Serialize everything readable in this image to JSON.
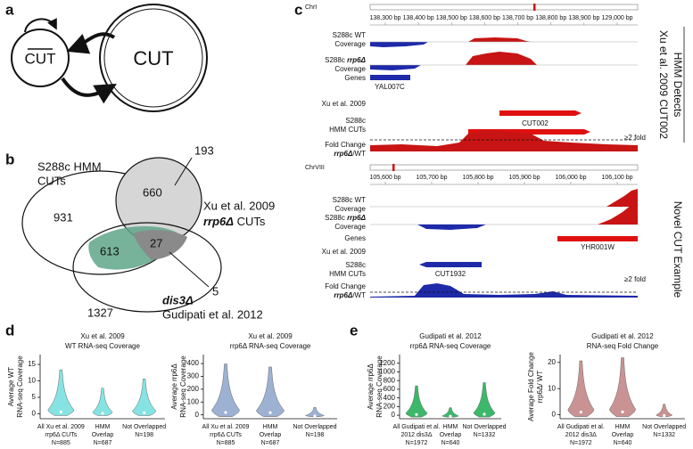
{
  "a": {
    "label": "a",
    "small": "CUT",
    "large": "CUT"
  },
  "b": {
    "label": "b",
    "hmm": [
      "S288c HMM",
      "CUTs"
    ],
    "xu": [
      "Xu et al. 2009",
      "rrp6Δ",
      "CUTs"
    ],
    "dis3": [
      "dis3Δ",
      "Gudipati et al. 2012"
    ],
    "counts": {
      "hmm_only": 931,
      "hmm_xu": 660,
      "xu_only": 193,
      "hmm_dis3": 613,
      "all": 27,
      "xu_dis3": 5,
      "dis3_only": 1327
    }
  },
  "c": {
    "label": "c",
    "browsers": [
      {
        "chrom": "ChrI",
        "scale": [
          "138,300 bp",
          "138,400 bp",
          "138,500 bp",
          "138,600 bp",
          "138,700 bp",
          "138,800 bp",
          "138,900 bp",
          "129,000 bp"
        ],
        "wt": [
          "S288c WT",
          "Coverage"
        ],
        "mut": [
          "S288c",
          "rrp6Δ",
          "Coverage"
        ],
        "genes": "Genes",
        "gene": "YAL007C",
        "xu": "Xu et al. 2009",
        "xu_cut": "CUT002",
        "hmm": [
          "S288c",
          "HMM CUTs"
        ],
        "fold": [
          "Fold Change",
          "rrp6Δ",
          "/WT"
        ],
        "threshold": "≥2 fold",
        "side": [
          "HMM Detects",
          "Xu et al. 2009 CUT002"
        ]
      },
      {
        "chrom": "ChrVIII",
        "scale": [
          "105,600 bp",
          "105,700 bp",
          "105,800 bp",
          "105,900 bp",
          "106,000 bp",
          "106,100 bp"
        ],
        "wt": [
          "S288c WT",
          "Coverage"
        ],
        "mut": [
          "S288c",
          "rrp6Δ",
          "Coverage"
        ],
        "genes": "Genes",
        "gene": "YHR001W",
        "xu": "Xu et al. 2009",
        "hmm_cut": "CUT1932",
        "hmm": [
          "S288c",
          "HMM CUTs"
        ],
        "fold": [
          "Fold Change",
          "rrp6Δ",
          "/WT"
        ],
        "threshold": "≥2 fold",
        "side": [
          "Novel CUT Example"
        ]
      }
    ]
  },
  "d": {
    "label": "d",
    "plots": [
      {
        "title": [
          "Xu et al. 2009",
          "WT RNA-seq Coverage"
        ],
        "ylabel": [
          "Average WT",
          "RNA-seq Coverage"
        ],
        "ylim": [
          -1.5,
          18
        ],
        "yticks": [
          0,
          5,
          10,
          15
        ],
        "color": "#86e3e3",
        "categories": [
          [
            "All Xu et al. 2009",
            "rrp6Δ CUTs",
            "N=885"
          ],
          [
            "HMM",
            "Overlap",
            "N=687"
          ],
          [
            "Not Overlapped",
            "N=198"
          ]
        ]
      },
      {
        "title": [
          "Xu et al. 2009",
          "rrp6Δ RNA-seq Coverage"
        ],
        "ylabel": [
          "Average rrp6Δ",
          "RNA-seq Coverage"
        ],
        "ylim": [
          -30,
          470
        ],
        "yticks": [
          0,
          100,
          200,
          300,
          400
        ],
        "color": "#9db1d2",
        "categories": [
          [
            "All Xu et al. 2009",
            "rrp6Δ CUTs",
            "N=885"
          ],
          [
            "HMM",
            "Overlap",
            "N=687"
          ],
          [
            "Not Overlapped",
            "N=198"
          ]
        ]
      }
    ]
  },
  "e": {
    "label": "e",
    "plots": [
      {
        "title": [
          "Gudipati et al. 2012",
          "rrp6Δ RNA-seq Coverage"
        ],
        "ylabel": [
          "Average rrp6Δ",
          "RNA-seq Coverage"
        ],
        "ylim": [
          -80,
          1400
        ],
        "yticks": [
          0,
          200,
          400,
          600,
          800,
          1000,
          1200
        ],
        "color": "#3cb86a",
        "categories": [
          [
            "All Gudipati et al.",
            "2012 dis3Δ",
            "N=1972"
          ],
          [
            "HMM",
            "Overlap",
            "N=640"
          ],
          [
            "Not Overlapped",
            "N=1332"
          ]
        ]
      },
      {
        "title": [
          "Gudipati et al. 2012",
          "RNA-seq Fold Change"
        ],
        "ylabel": [
          "Average Fold Change",
          "rrp6Δ/ WT"
        ],
        "ylim": [
          -1.5,
          23
        ],
        "yticks": [
          0,
          10,
          20
        ],
        "color": "#c99393",
        "categories": [
          [
            "All Gudipati et al.",
            "2012 dis3Δ",
            "N=1972"
          ],
          [
            "HMM",
            "Overlap",
            "N=640"
          ],
          [
            "Not Overlapped",
            "N=1332"
          ]
        ]
      }
    ]
  }
}
